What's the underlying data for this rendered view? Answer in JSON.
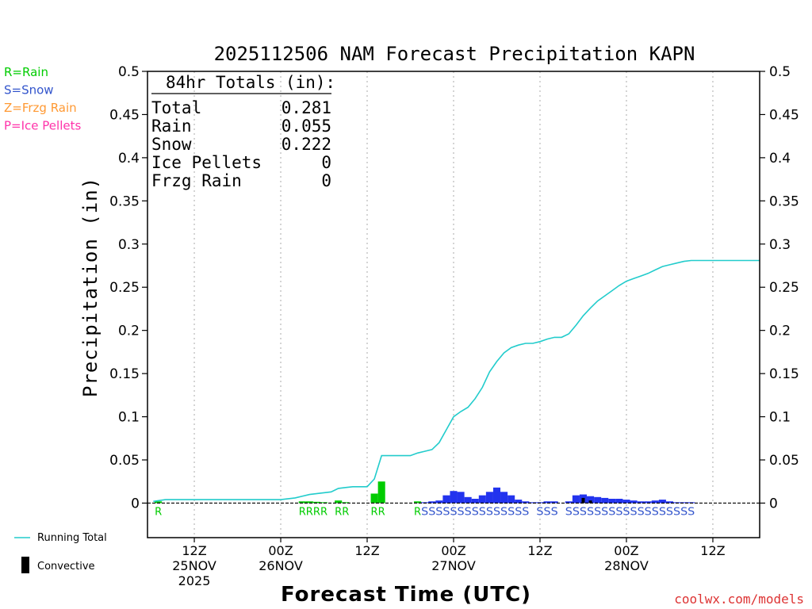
{
  "chart_data": {
    "type": "bar",
    "title": "2025112506 NAM Forecast Precipitation KAPN",
    "ylabel": "Precipitation (in)",
    "xlabel": "Forecast Time (UTC)",
    "ylim": [
      -0.04,
      0.5
    ],
    "yticks": [
      {
        "v": 0.5,
        "label": "0.5"
      },
      {
        "v": 0.45,
        "label": "0.45"
      },
      {
        "v": 0.4,
        "label": "0.4"
      },
      {
        "v": 0.35,
        "label": "0.35"
      },
      {
        "v": 0.3,
        "label": "0.3"
      },
      {
        "v": 0.25,
        "label": "0.25"
      },
      {
        "v": 0.2,
        "label": "0.2"
      },
      {
        "v": 0.15,
        "label": "0.15"
      },
      {
        "v": 0.1,
        "label": "0.1"
      },
      {
        "v": 0.05,
        "label": "0.05"
      },
      {
        "v": 0,
        "label": "0"
      }
    ],
    "xlim_hours": [
      -0.5,
      84.5
    ],
    "xticks": [
      {
        "h": 6,
        "lines": [
          "12Z",
          "25NOV",
          "2025"
        ]
      },
      {
        "h": 18,
        "lines": [
          "00Z",
          "26NOV"
        ]
      },
      {
        "h": 30,
        "lines": [
          "12Z"
        ]
      },
      {
        "h": 42,
        "lines": [
          "00Z",
          "27NOV"
        ]
      },
      {
        "h": 54,
        "lines": [
          "12Z"
        ]
      },
      {
        "h": 66,
        "lines": [
          "00Z",
          "28NOV"
        ]
      },
      {
        "h": 78,
        "lines": [
          "12Z"
        ]
      }
    ],
    "hourly_precip": [
      {
        "h": 1,
        "type": "R",
        "v": 0.002
      },
      {
        "h": 21,
        "type": "R",
        "v": 0.002
      },
      {
        "h": 22,
        "type": "R",
        "v": 0.002
      },
      {
        "h": 23,
        "type": "R",
        "v": 0.0015
      },
      {
        "h": 24,
        "type": "R",
        "v": 0.001
      },
      {
        "h": 26,
        "type": "R",
        "v": 0.003
      },
      {
        "h": 27,
        "type": "R",
        "v": 0.001
      },
      {
        "h": 31,
        "type": "R",
        "v": 0.011
      },
      {
        "h": 32,
        "type": "R",
        "v": 0.025
      },
      {
        "h": 37,
        "type": "R",
        "v": 0.002
      },
      {
        "h": 38,
        "type": "S",
        "v": 0.001
      },
      {
        "h": 39,
        "type": "S",
        "v": 0.002
      },
      {
        "h": 40,
        "type": "S",
        "v": 0.003
      },
      {
        "h": 41,
        "type": "S",
        "v": 0.009
      },
      {
        "h": 42,
        "type": "S",
        "v": 0.014
      },
      {
        "h": 43,
        "type": "S",
        "v": 0.013
      },
      {
        "h": 44,
        "type": "S",
        "v": 0.007
      },
      {
        "h": 45,
        "type": "S",
        "v": 0.005
      },
      {
        "h": 46,
        "type": "S",
        "v": 0.009
      },
      {
        "h": 47,
        "type": "S",
        "v": 0.013
      },
      {
        "h": 48,
        "type": "S",
        "v": 0.018
      },
      {
        "h": 49,
        "type": "S",
        "v": 0.013
      },
      {
        "h": 50,
        "type": "S",
        "v": 0.009
      },
      {
        "h": 51,
        "type": "S",
        "v": 0.004
      },
      {
        "h": 52,
        "type": "S",
        "v": 0.002
      },
      {
        "h": 53,
        "type": "S",
        "v": 0.001
      },
      {
        "h": 54,
        "type": "S",
        "v": 0.001
      },
      {
        "h": 55,
        "type": "S",
        "v": 0.002
      },
      {
        "h": 56,
        "type": "S",
        "v": 0.002
      },
      {
        "h": 58,
        "type": "S",
        "v": 0.002
      },
      {
        "h": 59,
        "type": "S",
        "v": 0.009
      },
      {
        "h": 60,
        "type": "S",
        "v": 0.01
      },
      {
        "h": 61,
        "type": "S",
        "v": 0.008
      },
      {
        "h": 62,
        "type": "S",
        "v": 0.007
      },
      {
        "h": 63,
        "type": "S",
        "v": 0.006
      },
      {
        "h": 64,
        "type": "S",
        "v": 0.005
      },
      {
        "h": 65,
        "type": "S",
        "v": 0.005
      },
      {
        "h": 66,
        "type": "S",
        "v": 0.004
      },
      {
        "h": 67,
        "type": "S",
        "v": 0.003
      },
      {
        "h": 68,
        "type": "S",
        "v": 0.002
      },
      {
        "h": 69,
        "type": "S",
        "v": 0.002
      },
      {
        "h": 70,
        "type": "S",
        "v": 0.003
      },
      {
        "h": 71,
        "type": "S",
        "v": 0.004
      },
      {
        "h": 72,
        "type": "S",
        "v": 0.002
      },
      {
        "h": 73,
        "type": "S",
        "v": 0.001
      },
      {
        "h": 74,
        "type": "S",
        "v": 0.001
      },
      {
        "h": 75,
        "type": "S",
        "v": 0.001
      }
    ],
    "convective": [
      {
        "h": 60,
        "v": 0.006
      },
      {
        "h": 61,
        "v": 0.003
      }
    ],
    "running_total": [
      [
        0.3,
        0.002
      ],
      [
        2,
        0.004
      ],
      [
        6,
        0.004
      ],
      [
        10,
        0.004
      ],
      [
        14,
        0.004
      ],
      [
        18,
        0.004
      ],
      [
        20,
        0.006
      ],
      [
        22,
        0.01
      ],
      [
        25,
        0.013
      ],
      [
        26,
        0.017
      ],
      [
        27,
        0.018
      ],
      [
        28,
        0.019
      ],
      [
        30,
        0.019
      ],
      [
        31,
        0.028
      ],
      [
        32,
        0.055
      ],
      [
        34,
        0.055
      ],
      [
        36,
        0.055
      ],
      [
        37,
        0.058
      ],
      [
        38,
        0.06
      ],
      [
        39,
        0.062
      ],
      [
        40,
        0.07
      ],
      [
        41,
        0.085
      ],
      [
        42,
        0.1
      ],
      [
        43,
        0.106
      ],
      [
        44,
        0.111
      ],
      [
        45,
        0.121
      ],
      [
        46,
        0.134
      ],
      [
        47,
        0.152
      ],
      [
        48,
        0.164
      ],
      [
        49,
        0.174
      ],
      [
        50,
        0.18
      ],
      [
        51,
        0.183
      ],
      [
        52,
        0.185
      ],
      [
        53,
        0.185
      ],
      [
        54,
        0.187
      ],
      [
        55,
        0.19
      ],
      [
        56,
        0.192
      ],
      [
        57,
        0.192
      ],
      [
        58,
        0.196
      ],
      [
        59,
        0.206
      ],
      [
        60,
        0.217
      ],
      [
        61,
        0.226
      ],
      [
        62,
        0.234
      ],
      [
        63,
        0.24
      ],
      [
        64,
        0.246
      ],
      [
        65,
        0.252
      ],
      [
        66,
        0.257
      ],
      [
        67,
        0.26
      ],
      [
        68,
        0.263
      ],
      [
        69,
        0.266
      ],
      [
        70,
        0.27
      ],
      [
        71,
        0.274
      ],
      [
        72,
        0.276
      ],
      [
        73,
        0.278
      ],
      [
        74,
        0.28
      ],
      [
        75,
        0.281
      ],
      [
        84.5,
        0.281
      ]
    ],
    "type_labels": [
      {
        "text": "R",
        "from": 1,
        "color": "rain"
      },
      {
        "text": "RRRR",
        "from": 21,
        "color": "rain"
      },
      {
        "text": "RR",
        "from": 26,
        "color": "rain"
      },
      {
        "text": "RR",
        "from": 31,
        "color": "rain"
      },
      {
        "text": "R",
        "from": 37,
        "color": "rain"
      },
      {
        "text": "SSSSSSSSSSSSSSS",
        "from": 38,
        "color": "snow"
      },
      {
        "text": "SSS",
        "from": 54,
        "color": "snow"
      },
      {
        "text": "SSSSSSSSSSSSSSSSSS",
        "from": 58,
        "color": "snow"
      }
    ],
    "totals_box": {
      "header": "84hr Totals (in):",
      "rows": [
        {
          "label": "Total",
          "value": "0.281"
        },
        {
          "label": "Rain",
          "value": "0.055"
        },
        {
          "label": "Snow",
          "value": "0.222"
        },
        {
          "label": "Ice Pellets",
          "value": "0"
        },
        {
          "label": "Frzg Rain",
          "value": "0"
        }
      ]
    },
    "type_legend": [
      {
        "text": "R=Rain",
        "color": "rain"
      },
      {
        "text": "S=Snow",
        "color": "snow"
      },
      {
        "text": "Z=Frzg Rain",
        "color": "frzg"
      },
      {
        "text": "P=Ice Pellets",
        "color": "ice"
      }
    ],
    "line_legend": {
      "running_total": "Running Total",
      "convective": "Convective"
    },
    "watermark": "coolwx.com/models",
    "colors": {
      "rain": "#00cc00",
      "snow": "#2233ee",
      "snow_label": "#3355cc",
      "frzg": "#ff9933",
      "ice": "#ff33aa",
      "total": "#22cccc",
      "convective": "#000000",
      "axis": "#000000",
      "grid": "#aaaaaa",
      "watermark": "#dd3333"
    }
  }
}
